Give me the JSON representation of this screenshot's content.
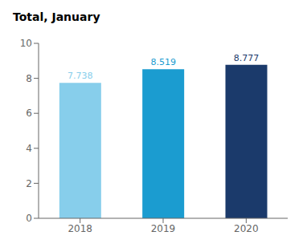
{
  "chart_data": {
    "type": "bar",
    "title": "Total, January",
    "categories": [
      "2018",
      "2019",
      "2020"
    ],
    "values": [
      7.738,
      8.519,
      8.777
    ],
    "colors": [
      "#87CEEB",
      "#1B9CD0",
      "#1B3A6B"
    ],
    "ylim": [
      0,
      10
    ],
    "yticks": [
      0,
      2,
      4,
      6,
      8,
      10
    ],
    "grid": false,
    "data_labels": true
  }
}
